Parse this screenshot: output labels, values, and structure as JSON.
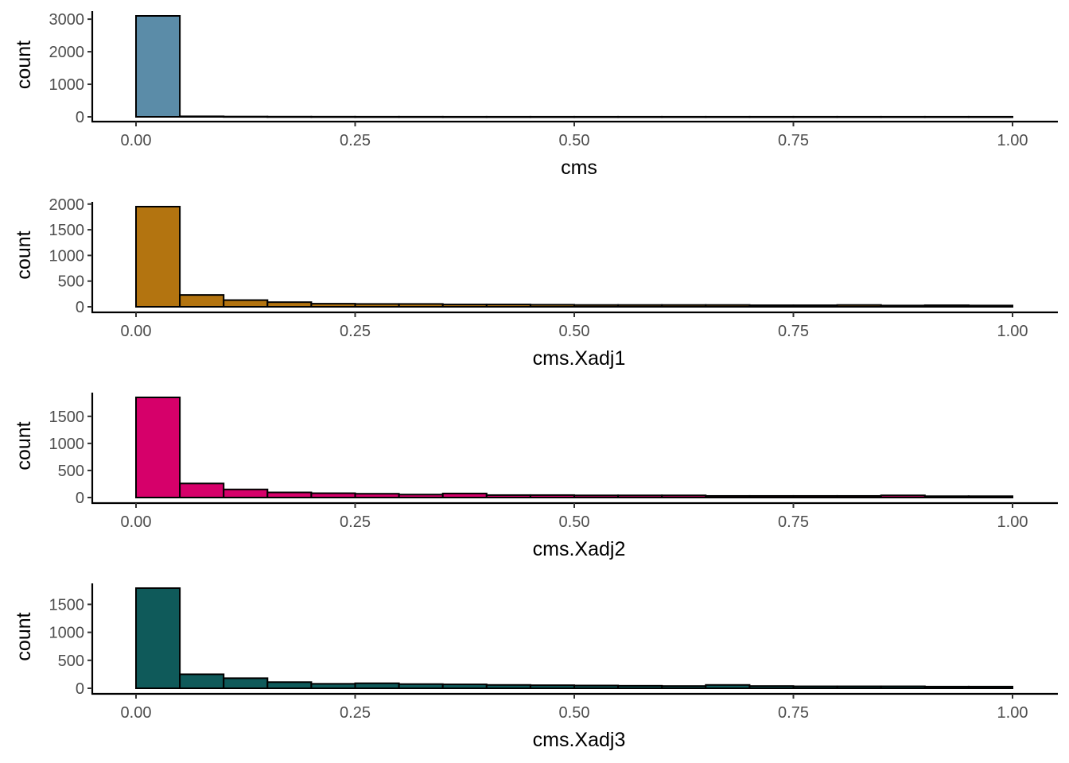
{
  "chart_data": [
    {
      "type": "bar",
      "subtype": "histogram",
      "xlabel": "cms",
      "ylabel": "count",
      "fill": "#5b8ca8",
      "xlim": [
        0,
        1
      ],
      "ylim": [
        0,
        3100
      ],
      "xticks": [
        0,
        0.25,
        0.5,
        0.75,
        1
      ],
      "xtick_labels": [
        "0.00",
        "0.25",
        "0.50",
        "0.75",
        "1.00"
      ],
      "yticks": [
        0,
        1000,
        2000,
        3000
      ],
      "ytick_labels": [
        "0",
        "1000",
        "2000",
        "3000"
      ],
      "bin_width": 0.05,
      "bin_starts": [
        0.0,
        0.05,
        0.1,
        0.15,
        0.2,
        0.25,
        0.3,
        0.35,
        0.4,
        0.45,
        0.5,
        0.55,
        0.6,
        0.65,
        0.7,
        0.75,
        0.8,
        0.85,
        0.9,
        0.95
      ],
      "values": [
        3100,
        15,
        8,
        5,
        4,
        3,
        3,
        2,
        2,
        2,
        2,
        2,
        2,
        2,
        2,
        2,
        2,
        2,
        2,
        2
      ]
    },
    {
      "type": "bar",
      "subtype": "histogram",
      "xlabel": "cms.Xadj1",
      "ylabel": "count",
      "fill": "#b37410",
      "xlim": [
        0,
        1
      ],
      "ylim": [
        0,
        1950
      ],
      "xticks": [
        0,
        0.25,
        0.5,
        0.75,
        1
      ],
      "xtick_labels": [
        "0.00",
        "0.25",
        "0.50",
        "0.75",
        "1.00"
      ],
      "yticks": [
        0,
        500,
        1000,
        1500,
        2000
      ],
      "ytick_labels": [
        "0",
        "500",
        "1000",
        "1500",
        "2000"
      ],
      "bin_width": 0.05,
      "bin_starts": [
        0.0,
        0.05,
        0.1,
        0.15,
        0.2,
        0.25,
        0.3,
        0.35,
        0.4,
        0.45,
        0.5,
        0.55,
        0.6,
        0.65,
        0.7,
        0.75,
        0.8,
        0.85,
        0.9,
        0.95
      ],
      "values": [
        1950,
        230,
        130,
        90,
        60,
        55,
        55,
        45,
        45,
        40,
        35,
        35,
        35,
        35,
        30,
        30,
        35,
        25,
        30,
        25
      ]
    },
    {
      "type": "bar",
      "subtype": "histogram",
      "xlabel": "cms.Xadj2",
      "ylabel": "count",
      "fill": "#d6006a",
      "xlim": [
        0,
        1
      ],
      "ylim": [
        0,
        1850
      ],
      "xticks": [
        0,
        0.25,
        0.5,
        0.75,
        1
      ],
      "xtick_labels": [
        "0.00",
        "0.25",
        "0.50",
        "0.75",
        "1.00"
      ],
      "yticks": [
        0,
        500,
        1000,
        1500
      ],
      "ytick_labels": [
        "0",
        "500",
        "1000",
        "1500"
      ],
      "bin_width": 0.05,
      "bin_starts": [
        0.0,
        0.05,
        0.1,
        0.15,
        0.2,
        0.25,
        0.3,
        0.35,
        0.4,
        0.45,
        0.5,
        0.55,
        0.6,
        0.65,
        0.7,
        0.75,
        0.8,
        0.85,
        0.9,
        0.95
      ],
      "values": [
        1850,
        260,
        150,
        95,
        80,
        70,
        55,
        75,
        45,
        45,
        40,
        40,
        40,
        30,
        30,
        30,
        30,
        40,
        25,
        25
      ]
    },
    {
      "type": "bar",
      "subtype": "histogram",
      "xlabel": "cms.Xadj3",
      "ylabel": "count",
      "fill": "#0f5a5a",
      "xlim": [
        0,
        1
      ],
      "ylim": [
        0,
        1790
      ],
      "xticks": [
        0,
        0.25,
        0.5,
        0.75,
        1
      ],
      "xtick_labels": [
        "0.00",
        "0.25",
        "0.50",
        "0.75",
        "1.00"
      ],
      "yticks": [
        0,
        500,
        1000,
        1500
      ],
      "ytick_labels": [
        "0",
        "500",
        "1000",
        "1500"
      ],
      "bin_width": 0.05,
      "bin_starts": [
        0.0,
        0.05,
        0.1,
        0.15,
        0.2,
        0.25,
        0.3,
        0.35,
        0.4,
        0.45,
        0.5,
        0.55,
        0.6,
        0.65,
        0.7,
        0.75,
        0.8,
        0.85,
        0.9,
        0.95
      ],
      "values": [
        1790,
        250,
        180,
        110,
        80,
        90,
        75,
        70,
        60,
        55,
        50,
        45,
        40,
        60,
        40,
        35,
        35,
        35,
        30,
        30
      ]
    }
  ]
}
